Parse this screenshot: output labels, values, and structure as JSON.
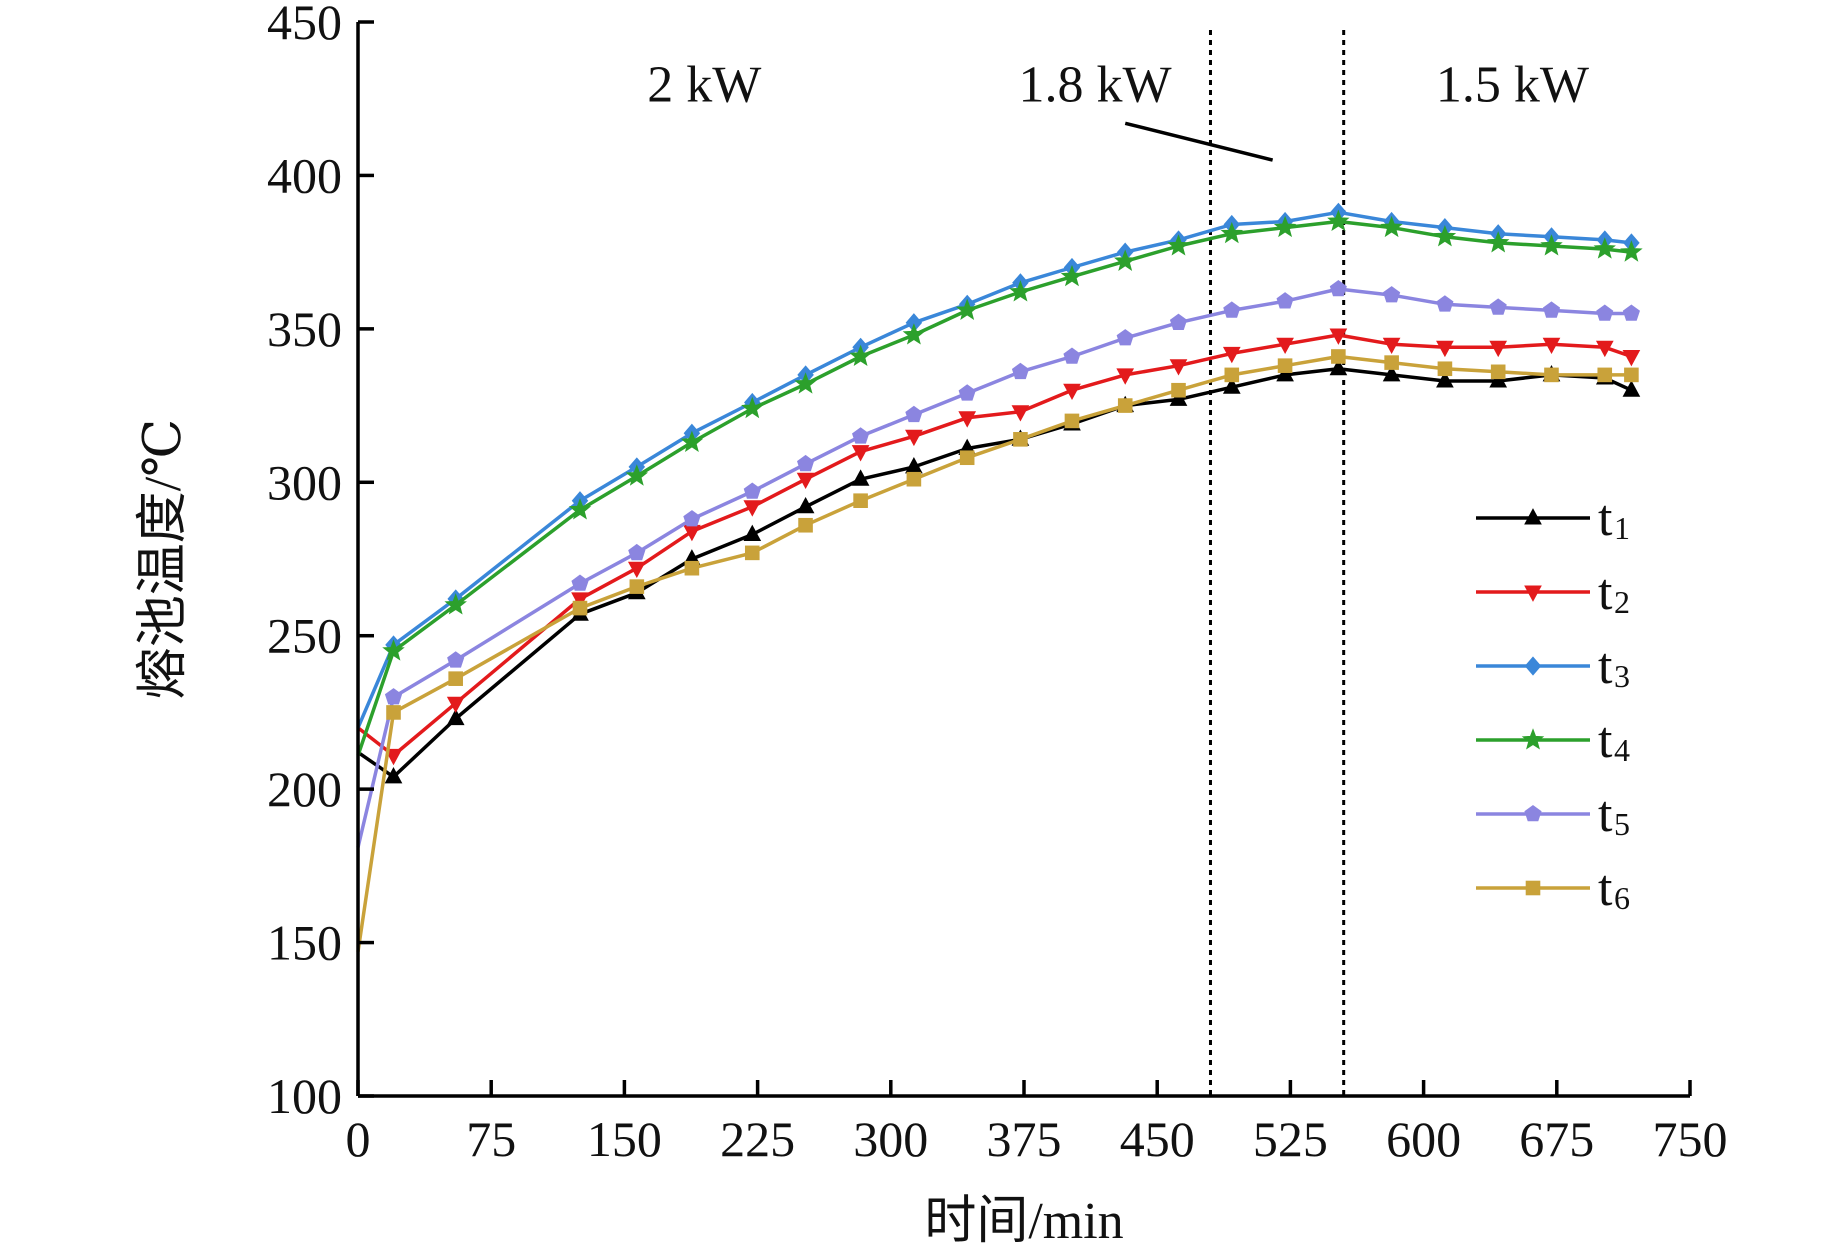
{
  "chart_data": {
    "type": "line",
    "xlabel": "时间/min",
    "ylabel": "熔池温度/℃",
    "xlim": [
      0,
      750
    ],
    "ylim": [
      100,
      450
    ],
    "xticks": [
      0,
      75,
      150,
      225,
      300,
      375,
      450,
      525,
      600,
      675,
      750
    ],
    "yticks": [
      100,
      150,
      200,
      250,
      300,
      350,
      400,
      450
    ],
    "grid": false,
    "legend": "right",
    "annotations": [
      {
        "text": "2 kW",
        "x": 195,
        "y": 430
      },
      {
        "text": "1.8 kW",
        "x": 415,
        "y": 430
      },
      {
        "text": "1.5 kW",
        "x": 650,
        "y": 430
      }
    ],
    "vlines": [
      480,
      555
    ],
    "leader_line": {
      "from": [
        432,
        417
      ],
      "to": [
        515,
        405
      ]
    },
    "x": [
      0,
      20,
      55,
      125,
      157,
      188,
      222,
      252,
      283,
      313,
      343,
      373,
      402,
      432,
      462,
      492,
      522,
      552,
      582,
      612,
      642,
      672,
      702,
      717
    ],
    "series": [
      {
        "name": "t",
        "sub": "1",
        "marker": "triangle-up",
        "color": "#000000",
        "values": [
          212,
          204,
          223,
          257,
          264,
          275,
          283,
          292,
          301,
          305,
          311,
          314,
          319,
          325,
          327,
          331,
          335,
          337,
          335,
          333,
          333,
          335,
          334,
          330
        ]
      },
      {
        "name": "t",
        "sub": "2",
        "marker": "triangle-down",
        "color": "#e31a1c",
        "values": [
          220,
          211,
          228,
          262,
          272,
          284,
          292,
          301,
          310,
          315,
          321,
          323,
          330,
          335,
          338,
          342,
          345,
          348,
          345,
          344,
          344,
          345,
          344,
          341
        ]
      },
      {
        "name": "t",
        "sub": "3",
        "marker": "diamond",
        "color": "#3a87d9",
        "values": [
          220,
          247,
          262,
          294,
          305,
          316,
          326,
          335,
          344,
          352,
          358,
          365,
          370,
          375,
          379,
          384,
          385,
          388,
          385,
          383,
          381,
          380,
          379,
          378
        ]
      },
      {
        "name": "t",
        "sub": "4",
        "marker": "star",
        "color": "#2ca02c",
        "values": [
          211,
          245,
          260,
          291,
          302,
          313,
          324,
          332,
          341,
          348,
          356,
          362,
          367,
          372,
          377,
          381,
          383,
          385,
          383,
          380,
          378,
          377,
          376,
          375
        ]
      },
      {
        "name": "t",
        "sub": "5",
        "marker": "pentagon",
        "color": "#8b85e0",
        "values": [
          181,
          230,
          242,
          267,
          277,
          288,
          297,
          306,
          315,
          322,
          329,
          336,
          341,
          347,
          352,
          356,
          359,
          363,
          361,
          358,
          357,
          356,
          355,
          355
        ]
      },
      {
        "name": "t",
        "sub": "6",
        "marker": "square",
        "color": "#c9a23a",
        "values": [
          147,
          225,
          236,
          259,
          266,
          272,
          277,
          286,
          294,
          301,
          308,
          314,
          320,
          325,
          330,
          335,
          338,
          341,
          339,
          337,
          336,
          335,
          335,
          335
        ]
      }
    ]
  }
}
